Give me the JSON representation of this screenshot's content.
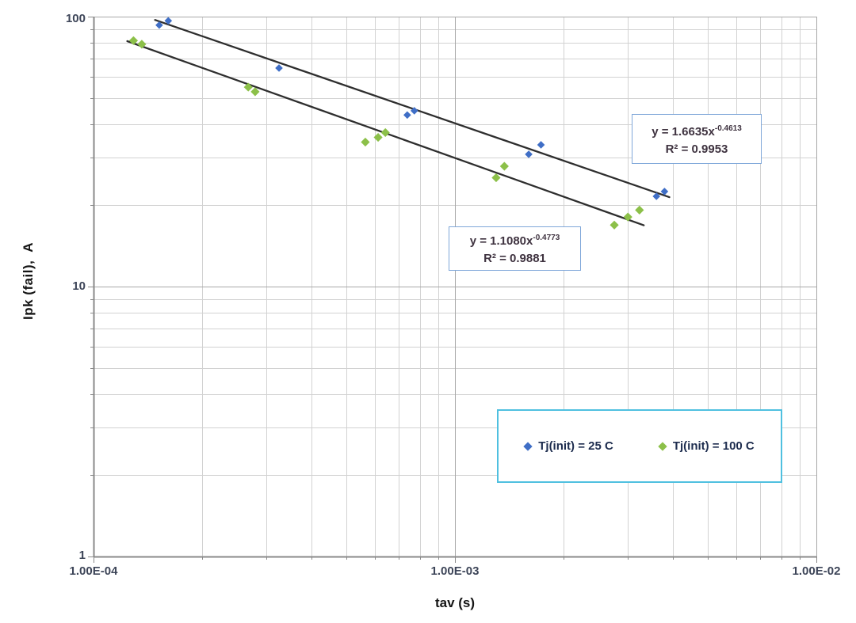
{
  "chart_data": {
    "type": "scatter",
    "title": "",
    "x_axis": {
      "label": "tav (s)",
      "scale": "log",
      "min": 0.0001,
      "max": 0.01,
      "tick_labels": [
        "1.00E-04",
        "1.00E-03",
        "1.00E-02"
      ]
    },
    "y_axis": {
      "label": "Ipk (fail),  A",
      "scale": "log",
      "min": 1,
      "max": 100,
      "tick_labels": [
        "1",
        "10",
        "100"
      ]
    },
    "grid": {
      "major": true,
      "minor": true
    },
    "legend_position": "inside-bottom-right",
    "series": [
      {
        "name": "Tj(init) = 25 C",
        "color": "#3f6ec6",
        "marker": "diamond",
        "points": [
          [
            0.000152,
            93.0
          ],
          [
            0.000161,
            96.5
          ],
          [
            0.000326,
            64.5
          ],
          [
            0.000738,
            43.2
          ],
          [
            0.000772,
            44.8
          ],
          [
            0.0016,
            30.9
          ],
          [
            0.00173,
            33.5
          ],
          [
            0.00361,
            21.6
          ],
          [
            0.0038,
            22.5
          ]
        ],
        "trend": {
          "a": 1.6635,
          "b": -0.4613,
          "x_start": 0.000148,
          "x_end": 0.00392,
          "eq_base": "y = 1.6635x",
          "eq_exp": "-0.4613",
          "r2": "R² = 0.9953"
        }
      },
      {
        "name": "Tj(init) = 100 C",
        "color": "#8cc049",
        "marker": "diamond",
        "points": [
          [
            0.000129,
            81.5
          ],
          [
            0.000136,
            79.0
          ],
          [
            0.000268,
            54.8
          ],
          [
            0.00028,
            52.7
          ],
          [
            0.000565,
            34.3
          ],
          [
            0.000613,
            35.7
          ],
          [
            0.000642,
            37.2
          ],
          [
            0.0013,
            25.3
          ],
          [
            0.00137,
            27.9
          ],
          [
            0.00276,
            16.9
          ],
          [
            0.00301,
            18.1
          ],
          [
            0.00324,
            19.2
          ]
        ],
        "trend": {
          "a": 1.108,
          "b": -0.4773,
          "x_start": 0.000124,
          "x_end": 0.00333,
          "eq_base": "y = 1.1080x",
          "eq_exp": "-0.4773",
          "r2": "R² = 0.9881"
        }
      }
    ]
  },
  "colors": {
    "grid_minor": "#d2d2d2",
    "grid_major": "#a8a8a8",
    "axis_line": "#8a8a8a",
    "trendline": "#2e2e2e",
    "annotation_border": "#7fa7d9",
    "legend_border": "#4fc0e0"
  }
}
